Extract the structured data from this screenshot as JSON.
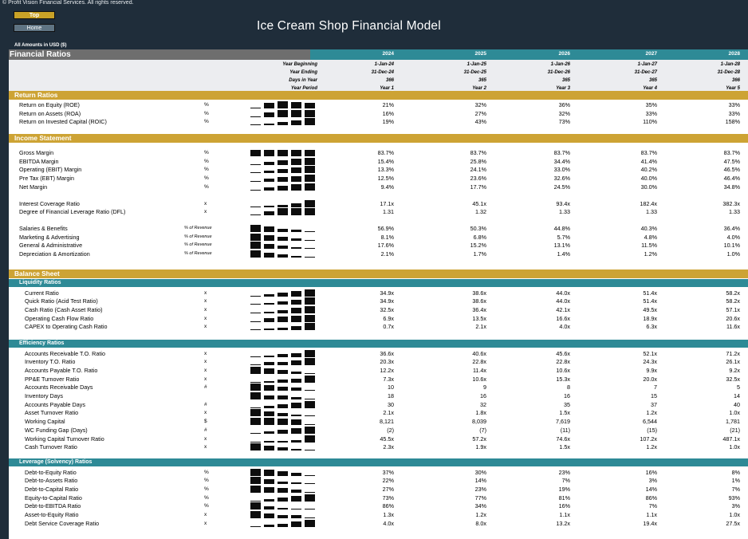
{
  "copyright": "© Profit Vision Financial Services. All rights reserved.",
  "nav": {
    "top_label": "Top",
    "home_label": "Home"
  },
  "title": "Ice Cream Shop Financial Model",
  "amounts_note": "All Amounts in  USD ($)",
  "colors": {
    "gold": "#cda334",
    "teal": "#2e8a96",
    "dark_bg": "#1f2d3a",
    "grey": "#6e6e6e"
  },
  "sheet": {
    "title": "Financial Ratios",
    "years": [
      "2024",
      "2025",
      "2026",
      "2027",
      "2028"
    ],
    "header_rows": [
      {
        "label": "Year Beginning",
        "values": [
          "1-Jan-24",
          "1-Jan-25",
          "1-Jan-26",
          "1-Jan-27",
          "1-Jan-28"
        ]
      },
      {
        "label": "Year Ending",
        "values": [
          "31-Dec-24",
          "31-Dec-25",
          "31-Dec-26",
          "31-Dec-27",
          "31-Dec-28"
        ]
      },
      {
        "label": "Days in Year",
        "values": [
          "366",
          "365",
          "365",
          "365",
          "366"
        ]
      },
      {
        "label": "Year Period",
        "values": [
          "Year 1",
          "Year 2",
          "Year 3",
          "Year 4",
          "Year 5"
        ]
      }
    ],
    "sections": [
      {
        "title": "Return Ratios",
        "kind": "gold",
        "top": 52,
        "rows": [
          {
            "label": "Return on Equity (ROE)",
            "unit": "%",
            "values": [
              "21%",
              "32%",
              "36%",
              "35%",
              "33%"
            ],
            "trend": [
              21,
              32,
              36,
              35,
              33
            ]
          },
          {
            "label": "Return on Assets (ROA)",
            "unit": "%",
            "values": [
              "16%",
              "27%",
              "32%",
              "33%",
              "33%"
            ],
            "trend": [
              16,
              27,
              32,
              33,
              33
            ]
          },
          {
            "label": "Return on Invested Capital (ROIC)",
            "unit": "%",
            "values": [
              "19%",
              "43%",
              "73%",
              "110%",
              "158%"
            ],
            "trend": [
              19,
              43,
              73,
              110,
              158
            ]
          }
        ]
      },
      {
        "title": "Income Statement",
        "kind": "gold",
        "top": 106,
        "rows": [
          {
            "label": "Gross Margin",
            "unit": "%",
            "values": [
              "83.7%",
              "83.7%",
              "83.7%",
              "83.7%",
              "83.7%"
            ],
            "trend": [
              83.7,
              83.7,
              83.7,
              83.7,
              83.7
            ],
            "gap": 6
          },
          {
            "label": "EBITDA Margin",
            "unit": "%",
            "values": [
              "15.4%",
              "25.8%",
              "34.4%",
              "41.4%",
              "47.5%"
            ],
            "trend": [
              15.4,
              25.8,
              34.4,
              41.4,
              47.5
            ]
          },
          {
            "label": "Operating (EBIT) Margin",
            "unit": "%",
            "values": [
              "13.3%",
              "24.1%",
              "33.0%",
              "40.2%",
              "46.5%"
            ],
            "trend": [
              13.3,
              24.1,
              33.0,
              40.2,
              46.5
            ]
          },
          {
            "label": "Pre Tax (EBT) Margin",
            "unit": "%",
            "values": [
              "12.5%",
              "23.6%",
              "32.6%",
              "40.0%",
              "46.4%"
            ],
            "trend": [
              12.5,
              23.6,
              32.6,
              40.0,
              46.4
            ]
          },
          {
            "label": "Net Margin",
            "unit": "%",
            "values": [
              "9.4%",
              "17.7%",
              "24.5%",
              "30.0%",
              "34.8%"
            ],
            "trend": [
              9.4,
              17.7,
              24.5,
              30.0,
              34.8
            ]
          },
          {
            "label": "Interest Coverage Ratio",
            "unit": "x",
            "values": [
              "17.1x",
              "45.1x",
              "93.4x",
              "182.4x",
              "382.3x"
            ],
            "trend": [
              17.1,
              45.1,
              93.4,
              182.4,
              382.3
            ],
            "gap": 10
          },
          {
            "label": "Degree of Financial Leverage Ratio (DFL)",
            "unit": "x",
            "values": [
              "1.31",
              "1.32",
              "1.33",
              "1.33",
              "1.33"
            ],
            "trend": [
              1.31,
              1.32,
              1.33,
              1.33,
              1.33
            ]
          },
          {
            "label": "Salaries & Benefits",
            "unit": "% of Revenue",
            "values": [
              "56.9%",
              "50.3%",
              "44.8%",
              "40.3%",
              "36.4%"
            ],
            "trend": [
              56.9,
              50.3,
              44.8,
              40.3,
              36.4
            ],
            "gap": 10
          },
          {
            "label": "Marketing & Advertising",
            "unit": "% of Revenue",
            "values": [
              "8.1%",
              "6.8%",
              "5.7%",
              "4.8%",
              "4.0%"
            ],
            "trend": [
              8.1,
              6.8,
              5.7,
              4.8,
              4.0
            ]
          },
          {
            "label": "General & Administrative",
            "unit": "% of Revenue",
            "values": [
              "17.6%",
              "15.2%",
              "13.1%",
              "11.5%",
              "10.1%"
            ],
            "trend": [
              17.6,
              15.2,
              13.1,
              11.5,
              10.1
            ]
          },
          {
            "label": "Depreciation & Amortization",
            "unit": "% of Revenue",
            "values": [
              "2.1%",
              "1.7%",
              "1.4%",
              "1.2%",
              "1.0%"
            ],
            "trend": [
              2.1,
              1.7,
              1.4,
              1.2,
              1.0
            ]
          }
        ]
      },
      {
        "title": "Balance Sheet",
        "kind": "gold",
        "top": 276,
        "rows": []
      },
      {
        "title": "Liquidity Ratios",
        "kind": "teal",
        "top": 288,
        "rows": [
          {
            "label": "Current Ratio",
            "unit": "x",
            "values": [
              "34.9x",
              "38.6x",
              "44.0x",
              "51.4x",
              "58.2x"
            ],
            "trend": [
              34.9,
              38.6,
              44.0,
              51.4,
              58.2
            ]
          },
          {
            "label": "Quick Ratio (Acid Test Ratio)",
            "unit": "x",
            "values": [
              "34.9x",
              "38.6x",
              "44.0x",
              "51.4x",
              "58.2x"
            ],
            "trend": [
              34.9,
              38.6,
              44.0,
              51.4,
              58.2
            ]
          },
          {
            "label": "Cash Ratio (Cash Asset Ratio)",
            "unit": "x",
            "values": [
              "32.5x",
              "36.4x",
              "42.1x",
              "49.5x",
              "57.1x"
            ],
            "trend": [
              32.5,
              36.4,
              42.1,
              49.5,
              57.1
            ]
          },
          {
            "label": "Operating Cash Flow Ratio",
            "unit": "x",
            "values": [
              "6.9x",
              "13.5x",
              "16.6x",
              "18.9x",
              "20.6x"
            ],
            "trend": [
              6.9,
              13.5,
              16.6,
              18.9,
              20.6
            ]
          },
          {
            "label": "CAPEX to Operating Cash Ratio",
            "unit": "x",
            "values": [
              "0.7x",
              "2.1x",
              "4.0x",
              "6.3x",
              "11.6x"
            ],
            "trend": [
              0.7,
              2.1,
              4.0,
              6.3,
              11.6
            ]
          }
        ]
      },
      {
        "title": "Efficiency Ratios",
        "kind": "teal",
        "top": 364,
        "rows": [
          {
            "label": "Accounts Receivable T.O. Ratio",
            "unit": "x",
            "values": [
              "36.6x",
              "40.6x",
              "45.6x",
              "52.1x",
              "71.2x"
            ],
            "trend": [
              36.6,
              40.6,
              45.6,
              52.1,
              71.2
            ]
          },
          {
            "label": "Inventory T.O. Ratio",
            "unit": "x",
            "values": [
              "20.3x",
              "22.8x",
              "22.8x",
              "24.3x",
              "26.1x"
            ],
            "trend": [
              20.3,
              22.8,
              22.8,
              24.3,
              26.1
            ]
          },
          {
            "label": "Accounts Payable T.O. Ratio",
            "unit": "x",
            "values": [
              "12.2x",
              "11.4x",
              "10.6x",
              "9.9x",
              "9.2x"
            ],
            "trend": [
              12.2,
              11.4,
              10.6,
              9.9,
              9.2
            ]
          },
          {
            "label": "PP&E Turnover Ratio",
            "unit": "x",
            "values": [
              "7.3x",
              "10.6x",
              "15.3x",
              "20.0x",
              "32.5x"
            ],
            "trend": [
              7.3,
              10.6,
              15.3,
              20.0,
              32.5
            ]
          },
          {
            "label": "Accounts Receivable Days",
            "unit": "#",
            "values": [
              "10",
              "9",
              "8",
              "7",
              "5"
            ],
            "trend": [
              10,
              9,
              8,
              7,
              5
            ]
          },
          {
            "label": "Inventory Days",
            "unit": "",
            "values": [
              "18",
              "16",
              "16",
              "15",
              "14"
            ],
            "trend": [
              18,
              16,
              16,
              15,
              14
            ]
          },
          {
            "label": "Accounts Payable Days",
            "unit": "#",
            "values": [
              "30",
              "32",
              "35",
              "37",
              "40"
            ],
            "trend": [
              30,
              32,
              35,
              37,
              40
            ]
          },
          {
            "label": "Asset Turnover Ratio",
            "unit": "x",
            "values": [
              "2.1x",
              "1.8x",
              "1.5x",
              "1.2x",
              "1.0x"
            ],
            "trend": [
              2.1,
              1.8,
              1.5,
              1.2,
              1.0
            ]
          },
          {
            "label": "Working Capital",
            "unit": "$",
            "values": [
              "8,121",
              "8,039",
              "7,619",
              "6,544",
              "1,781"
            ],
            "trend": [
              8121,
              8039,
              7619,
              6544,
              1781
            ]
          },
          {
            "label": "WC Funding Gap (Days)",
            "unit": "#",
            "values": [
              "(2)",
              "(7)",
              "(11)",
              "(15)",
              "(21)"
            ],
            "trend": [
              2,
              7,
              11,
              15,
              21
            ]
          },
          {
            "label": "Working Capital Turnover Ratio",
            "unit": "x",
            "values": [
              "45.5x",
              "57.2x",
              "74.6x",
              "107.2x",
              "487.1x"
            ],
            "trend": [
              45.5,
              57.2,
              74.6,
              107.2,
              487.1
            ]
          },
          {
            "label": "Cash Turnover Ratio",
            "unit": "x",
            "values": [
              "2.3x",
              "1.9x",
              "1.5x",
              "1.2x",
              "1.0x"
            ],
            "trend": [
              2.3,
              1.9,
              1.5,
              1.2,
              1.0
            ]
          }
        ]
      },
      {
        "title": "Leverage (Solvency) Ratios",
        "kind": "teal",
        "top": 513,
        "rows": [
          {
            "label": "Debt-to-Equity Ratio",
            "unit": "%",
            "values": [
              "37%",
              "30%",
              "23%",
              "16%",
              "8%"
            ],
            "trend": [
              37,
              30,
              23,
              16,
              8
            ]
          },
          {
            "label": "Debt-to-Assets Ratio",
            "unit": "%",
            "values": [
              "22%",
              "14%",
              "7%",
              "3%",
              "1%"
            ],
            "trend": [
              22,
              14,
              7,
              3,
              1
            ]
          },
          {
            "label": "Debt-to-Capital Ratio",
            "unit": "%",
            "values": [
              "27%",
              "23%",
              "19%",
              "14%",
              "7%"
            ],
            "trend": [
              27,
              23,
              19,
              14,
              7
            ]
          },
          {
            "label": "Equity-to-Capital Ratio",
            "unit": "%",
            "values": [
              "73%",
              "77%",
              "81%",
              "86%",
              "93%"
            ],
            "trend": [
              73,
              77,
              81,
              86,
              93
            ]
          },
          {
            "label": "Debt-to-EBITDA Ratio",
            "unit": "%",
            "values": [
              "86%",
              "34%",
              "16%",
              "7%",
              "3%"
            ],
            "trend": [
              86,
              34,
              16,
              7,
              3
            ]
          },
          {
            "label": "Asset-to-Equity Ratio",
            "unit": "x",
            "values": [
              "1.3x",
              "1.2x",
              "1.1x",
              "1.1x",
              "1.0x"
            ],
            "trend": [
              1.3,
              1.2,
              1.1,
              1.1,
              1.0
            ]
          },
          {
            "label": "Debt Service Coverage Ratio",
            "unit": "x",
            "values": [
              "4.0x",
              "8.0x",
              "13.2x",
              "19.4x",
              "27.5x"
            ],
            "trend": [
              4.0,
              8.0,
              13.2,
              19.4,
              27.5
            ]
          }
        ]
      }
    ]
  }
}
